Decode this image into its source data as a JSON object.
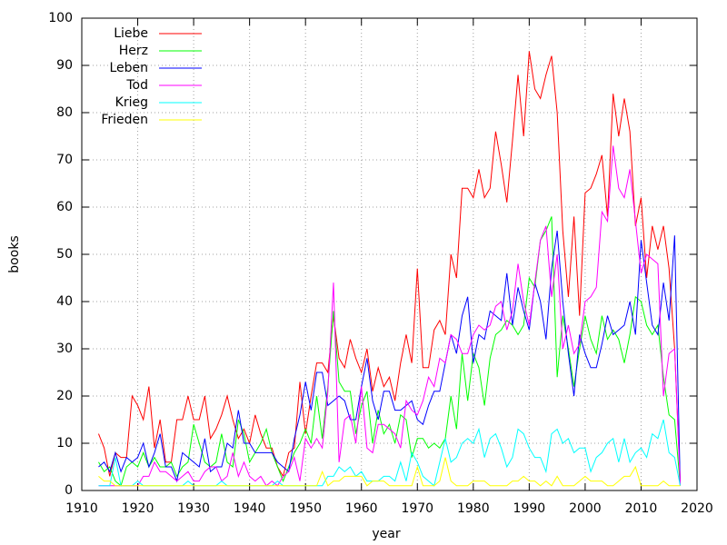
{
  "chart_data": {
    "type": "line",
    "xlabel": "year",
    "ylabel": "books",
    "xlim": [
      1910,
      2020
    ],
    "xticks": [
      1910,
      1920,
      1930,
      1940,
      1950,
      1960,
      1970,
      1980,
      1990,
      2000,
      2010,
      2020
    ],
    "ylim": [
      0,
      100
    ],
    "yticks": [
      0,
      10,
      20,
      30,
      40,
      50,
      60,
      70,
      80,
      90,
      100
    ],
    "grid": true,
    "legend": "top-left",
    "x": [
      1913,
      1914,
      1915,
      1916,
      1917,
      1918,
      1919,
      1920,
      1921,
      1922,
      1923,
      1924,
      1925,
      1926,
      1927,
      1928,
      1929,
      1930,
      1931,
      1932,
      1933,
      1934,
      1935,
      1936,
      1937,
      1938,
      1939,
      1940,
      1941,
      1942,
      1943,
      1944,
      1945,
      1946,
      1947,
      1948,
      1949,
      1950,
      1951,
      1952,
      1953,
      1954,
      1955,
      1956,
      1957,
      1958,
      1959,
      1960,
      1961,
      1962,
      1963,
      1964,
      1965,
      1966,
      1967,
      1968,
      1969,
      1970,
      1971,
      1972,
      1973,
      1974,
      1975,
      1976,
      1977,
      1978,
      1979,
      1980,
      1981,
      1982,
      1983,
      1984,
      1985,
      1986,
      1987,
      1988,
      1989,
      1990,
      1991,
      1992,
      1993,
      1994,
      1995,
      1996,
      1997,
      1998,
      1999,
      2000,
      2001,
      2002,
      2003,
      2004,
      2005,
      2006,
      2007,
      2008,
      2009,
      2010,
      2011,
      2012,
      2013,
      2014,
      2015,
      2016,
      2017
    ],
    "series": [
      {
        "name": "Liebe",
        "color": "#ff0000",
        "values": [
          12,
          9,
          3,
          8,
          7,
          7,
          20,
          18,
          15,
          22,
          9,
          15,
          6,
          6,
          15,
          15,
          20,
          15,
          15,
          20,
          11,
          13,
          16,
          20,
          15,
          11,
          13,
          10,
          16,
          12,
          9,
          9,
          5,
          3,
          8,
          9,
          23,
          12,
          20,
          27,
          27,
          25,
          37,
          28,
          26,
          32,
          28,
          25,
          30,
          21,
          26,
          22,
          24,
          19,
          27,
          33,
          27,
          47,
          26,
          26,
          34,
          36,
          33,
          50,
          45,
          64,
          64,
          62,
          68,
          62,
          64,
          76,
          69,
          61,
          74,
          88,
          75,
          93,
          85,
          83,
          88,
          92,
          80,
          55,
          41,
          58,
          37,
          63,
          64,
          67,
          71,
          58,
          84,
          75,
          83,
          76,
          56,
          62,
          45,
          56,
          51,
          56,
          47,
          30,
          2
        ]
      },
      {
        "name": "Herz",
        "color": "#00ff00",
        "values": [
          6,
          4,
          5,
          2,
          1,
          5,
          6,
          5,
          8,
          5,
          7,
          5,
          5,
          6,
          3,
          5,
          6,
          14,
          10,
          6,
          5,
          6,
          12,
          6,
          5,
          15,
          12,
          6,
          8,
          10,
          13,
          8,
          5,
          2,
          5,
          8,
          10,
          13,
          10,
          20,
          11,
          22,
          38,
          23,
          21,
          21,
          12,
          18,
          21,
          10,
          17,
          12,
          14,
          10,
          16,
          15,
          7,
          11,
          11,
          9,
          10,
          9,
          11,
          20,
          13,
          29,
          19,
          29,
          26,
          18,
          28,
          33,
          34,
          36,
          35,
          33,
          35,
          45,
          43,
          53,
          55,
          58,
          24,
          37,
          30,
          22,
          30,
          37,
          32,
          29,
          37,
          32,
          34,
          32,
          27,
          33,
          41,
          40,
          35,
          33,
          35,
          24,
          16,
          15,
          1
        ]
      },
      {
        "name": "Leben",
        "color": "#0000ff",
        "values": [
          5,
          6,
          4,
          8,
          4,
          7,
          6,
          7,
          10,
          5,
          8,
          12,
          5,
          5,
          2,
          8,
          7,
          6,
          5,
          11,
          4,
          5,
          5,
          10,
          9,
          17,
          10,
          10,
          8,
          8,
          8,
          8,
          6,
          5,
          4,
          11,
          16,
          23,
          17,
          25,
          25,
          18,
          19,
          20,
          19,
          15,
          15,
          22,
          28,
          19,
          15,
          21,
          21,
          17,
          17,
          18,
          19,
          15,
          14,
          18,
          21,
          21,
          27,
          33,
          29,
          37,
          41,
          27,
          33,
          32,
          38,
          37,
          36,
          46,
          35,
          43,
          38,
          34,
          44,
          40,
          32,
          47,
          55,
          40,
          29,
          20,
          33,
          29,
          26,
          26,
          31,
          37,
          33,
          34,
          35,
          40,
          33,
          53,
          44,
          35,
          33,
          44,
          36,
          54,
          1
        ]
      },
      {
        "name": "Tod",
        "color": "#ff00ff",
        "values": [
          1,
          1,
          1,
          1,
          1,
          1,
          1,
          1,
          3,
          3,
          6,
          4,
          4,
          3,
          2,
          3,
          4,
          2,
          2,
          4,
          5,
          5,
          2,
          3,
          8,
          3,
          6,
          3,
          2,
          3,
          1,
          2,
          1,
          3,
          4,
          7,
          2,
          11,
          9,
          11,
          9,
          21,
          44,
          6,
          15,
          16,
          10,
          22,
          9,
          8,
          14,
          14,
          13,
          12,
          9,
          19,
          17,
          16,
          19,
          24,
          22,
          28,
          27,
          33,
          32,
          29,
          29,
          33,
          35,
          34,
          35,
          39,
          40,
          34,
          38,
          48,
          40,
          35,
          44,
          53,
          56,
          41,
          50,
          30,
          35,
          29,
          31,
          40,
          41,
          43,
          59,
          57,
          73,
          64,
          62,
          68,
          57,
          46,
          50,
          49,
          48,
          20,
          29,
          30,
          1
        ]
      },
      {
        "name": "Krieg",
        "color": "#00ffff",
        "values": [
          1,
          1,
          1,
          7,
          1,
          1,
          1,
          2,
          1,
          1,
          1,
          1,
          1,
          1,
          1,
          1,
          2,
          1,
          1,
          1,
          1,
          1,
          2,
          1,
          1,
          1,
          1,
          1,
          1,
          1,
          1,
          1,
          2,
          1,
          1,
          1,
          1,
          1,
          1,
          1,
          1,
          3,
          3,
          5,
          4,
          5,
          3,
          4,
          2,
          2,
          2,
          3,
          3,
          2,
          6,
          2,
          8,
          6,
          3,
          2,
          1,
          6,
          11,
          6,
          7,
          10,
          11,
          10,
          13,
          7,
          11,
          12,
          9,
          5,
          7,
          13,
          12,
          9,
          7,
          7,
          4,
          12,
          13,
          10,
          11,
          8,
          9,
          9,
          4,
          7,
          8,
          10,
          11,
          6,
          11,
          6,
          8,
          9,
          7,
          12,
          11,
          15,
          8,
          7,
          1
        ]
      },
      {
        "name": "Frieden",
        "color": "#ffff00",
        "values": [
          3,
          2,
          2,
          1,
          1,
          1,
          1,
          1,
          1,
          1,
          1,
          1,
          1,
          1,
          1,
          1,
          1,
          1,
          1,
          1,
          1,
          1,
          1,
          1,
          1,
          1,
          1,
          1,
          1,
          1,
          1,
          1,
          1,
          1,
          1,
          1,
          1,
          1,
          1,
          1,
          4,
          1,
          2,
          2,
          3,
          3,
          3,
          3,
          1,
          2,
          2,
          2,
          1,
          1,
          1,
          1,
          1,
          5,
          1,
          1,
          1,
          2,
          7,
          2,
          1,
          1,
          1,
          2,
          2,
          2,
          1,
          1,
          1,
          1,
          2,
          2,
          3,
          2,
          2,
          1,
          2,
          1,
          3,
          1,
          1,
          1,
          2,
          3,
          2,
          2,
          2,
          1,
          1,
          2,
          3,
          3,
          5,
          1,
          1,
          1,
          1,
          2,
          1,
          1,
          1
        ]
      }
    ]
  }
}
